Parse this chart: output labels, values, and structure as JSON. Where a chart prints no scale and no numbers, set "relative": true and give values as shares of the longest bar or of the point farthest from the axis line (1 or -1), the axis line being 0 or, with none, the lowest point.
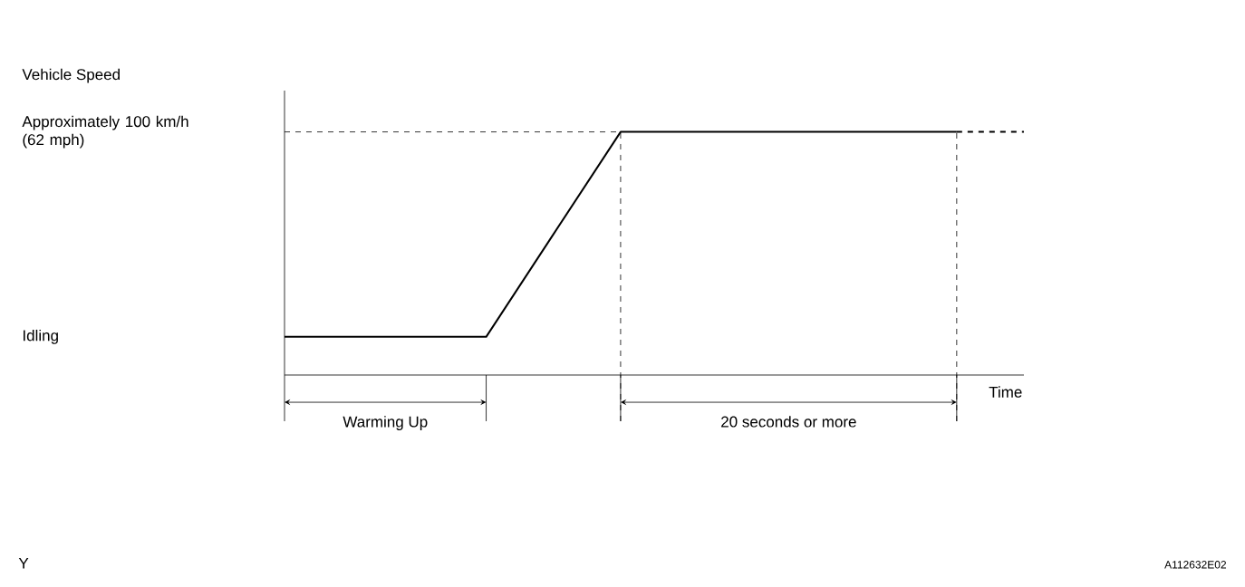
{
  "chart_data": {
    "type": "line",
    "relative": true,
    "xlabel": "Time",
    "categories": [
      null,
      null,
      null,
      null,
      null,
      null,
      null,
      null,
      null,
      null,
      null,
      null
    ],
    "series": [
      {
        "color": "#000000",
        "values": [
          0.157,
          0.157,
          0.157,
          0.157,
          0.579,
          1,
          1,
          1,
          1,
          1,
          1,
          null
        ],
        "line_style": "solid"
      },
      {
        "color": "#000000",
        "values": [
          null,
          null,
          null,
          null,
          null,
          null,
          null,
          null,
          null,
          null,
          1,
          1
        ],
        "line_style": "dashed"
      }
    ],
    "annotations": [
      "Vehicle Speed",
      "Approximately 100 km/h (62 mph)",
      "Idling",
      "Warming Up",
      "20 seconds or more",
      "Y",
      "A112632E02"
    ]
  }
}
